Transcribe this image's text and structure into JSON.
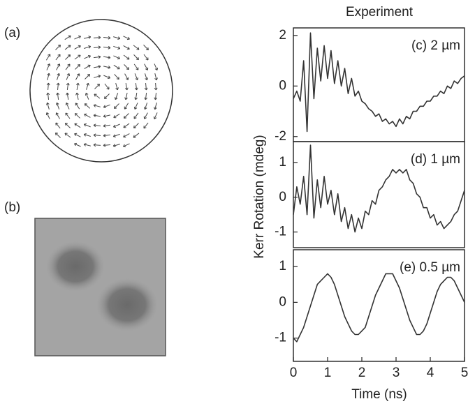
{
  "figure": {
    "title": "Experiment",
    "ylabel": "Kerr Rotation (mdeg)",
    "xlabel": "Time (ns)"
  },
  "panels": [
    "(a)",
    "(b)"
  ],
  "chart_data": [
    {
      "type": "line",
      "annotation": "(c) 2 µm",
      "xlim": [
        0,
        5
      ],
      "ylim": [
        -2.2,
        2.3
      ],
      "yticks": [
        -2,
        0,
        2
      ],
      "x": [
        0,
        0.1,
        0.2,
        0.3,
        0.4,
        0.5,
        0.6,
        0.7,
        0.8,
        0.9,
        1,
        1.1,
        1.2,
        1.3,
        1.4,
        1.5,
        1.6,
        1.7,
        1.8,
        1.9,
        2,
        2.1,
        2.2,
        2.3,
        2.4,
        2.5,
        2.6,
        2.7,
        2.8,
        2.9,
        3,
        3.1,
        3.2,
        3.3,
        3.4,
        3.5,
        3.6,
        3.7,
        3.8,
        3.9,
        4,
        4.1,
        4.2,
        4.3,
        4.4,
        4.5,
        4.6,
        4.7,
        4.8,
        4.9,
        5
      ],
      "series": [
        {
          "color": "#333333",
          "values": [
            -0.5,
            -0.2,
            -0.6,
            1.0,
            -1.8,
            2.1,
            -0.5,
            1.5,
            0.2,
            1.6,
            0.3,
            1.4,
            0.1,
            1.0,
            0.0,
            0.7,
            -0.3,
            0.3,
            -0.4,
            -0.2,
            -0.6,
            -0.7,
            -0.9,
            -1.0,
            -1.2,
            -1.1,
            -1.4,
            -1.3,
            -1.5,
            -1.4,
            -1.6,
            -1.3,
            -1.5,
            -1.2,
            -1.3,
            -1.0,
            -1.0,
            -0.8,
            -0.8,
            -0.6,
            -0.6,
            -0.4,
            -0.4,
            -0.2,
            -0.3,
            0.0,
            -0.1,
            0.2,
            0.1,
            0.3,
            0.4
          ]
        }
      ]
    },
    {
      "type": "line",
      "annotation": "(d) 1 µm",
      "xlim": [
        0,
        5
      ],
      "ylim": [
        -1.45,
        1.6
      ],
      "yticks": [
        -1,
        0,
        1
      ],
      "x": [
        0,
        0.1,
        0.2,
        0.3,
        0.4,
        0.5,
        0.6,
        0.7,
        0.8,
        0.9,
        1,
        1.1,
        1.2,
        1.3,
        1.4,
        1.5,
        1.6,
        1.7,
        1.8,
        1.9,
        2,
        2.1,
        2.2,
        2.3,
        2.4,
        2.5,
        2.6,
        2.7,
        2.8,
        2.9,
        3,
        3.1,
        3.2,
        3.3,
        3.4,
        3.5,
        3.6,
        3.7,
        3.8,
        3.9,
        4,
        4.1,
        4.2,
        4.3,
        4.4,
        4.5,
        4.6,
        4.7,
        4.8,
        4.9,
        5
      ],
      "series": [
        {
          "color": "#333333",
          "values": [
            -0.5,
            0.3,
            -0.2,
            0.6,
            -0.5,
            1.5,
            -0.6,
            0.5,
            -0.3,
            0.6,
            -0.2,
            0.2,
            -0.5,
            0.1,
            -0.7,
            -0.3,
            -0.9,
            -0.5,
            -1.0,
            -0.6,
            -0.9,
            -0.4,
            -0.5,
            -0.1,
            -0.2,
            0.2,
            0.3,
            0.5,
            0.6,
            0.8,
            0.7,
            0.8,
            0.7,
            0.8,
            0.5,
            0.4,
            0.1,
            0.0,
            -0.3,
            -0.3,
            -0.6,
            -0.5,
            -0.8,
            -0.7,
            -0.9,
            -0.8,
            -0.7,
            -0.5,
            -0.4,
            -0.1,
            0.2
          ]
        }
      ]
    },
    {
      "type": "line",
      "annotation": "(e) 0.5 µm",
      "xlim": [
        0,
        5
      ],
      "ylim": [
        -1.65,
        1.47
      ],
      "yticks": [
        -1,
        0,
        1
      ],
      "xticks": [
        0,
        1,
        2,
        3,
        4,
        5
      ],
      "x": [
        0,
        0.1,
        0.2,
        0.3,
        0.4,
        0.5,
        0.6,
        0.7,
        0.8,
        0.9,
        1,
        1.1,
        1.2,
        1.3,
        1.4,
        1.5,
        1.6,
        1.7,
        1.8,
        1.9,
        2,
        2.1,
        2.2,
        2.3,
        2.4,
        2.5,
        2.6,
        2.7,
        2.8,
        2.9,
        3,
        3.1,
        3.2,
        3.3,
        3.4,
        3.5,
        3.6,
        3.7,
        3.8,
        3.9,
        4,
        4.1,
        4.2,
        4.3,
        4.4,
        4.5,
        4.6,
        4.7,
        4.8,
        4.9,
        5
      ],
      "series": [
        {
          "color": "#333333",
          "values": [
            -1.0,
            -1.1,
            -0.9,
            -0.7,
            -0.4,
            -0.1,
            0.2,
            0.5,
            0.6,
            0.7,
            0.8,
            0.7,
            0.5,
            0.2,
            -0.1,
            -0.4,
            -0.6,
            -0.8,
            -0.9,
            -0.9,
            -0.8,
            -0.7,
            -0.4,
            -0.1,
            0.2,
            0.4,
            0.6,
            0.8,
            0.8,
            0.8,
            0.6,
            0.4,
            0.1,
            -0.2,
            -0.5,
            -0.7,
            -0.9,
            -0.9,
            -0.8,
            -0.6,
            -0.3,
            0.0,
            0.3,
            0.5,
            0.6,
            0.7,
            0.7,
            0.6,
            0.4,
            0.2,
            0.0
          ]
        }
      ]
    }
  ]
}
